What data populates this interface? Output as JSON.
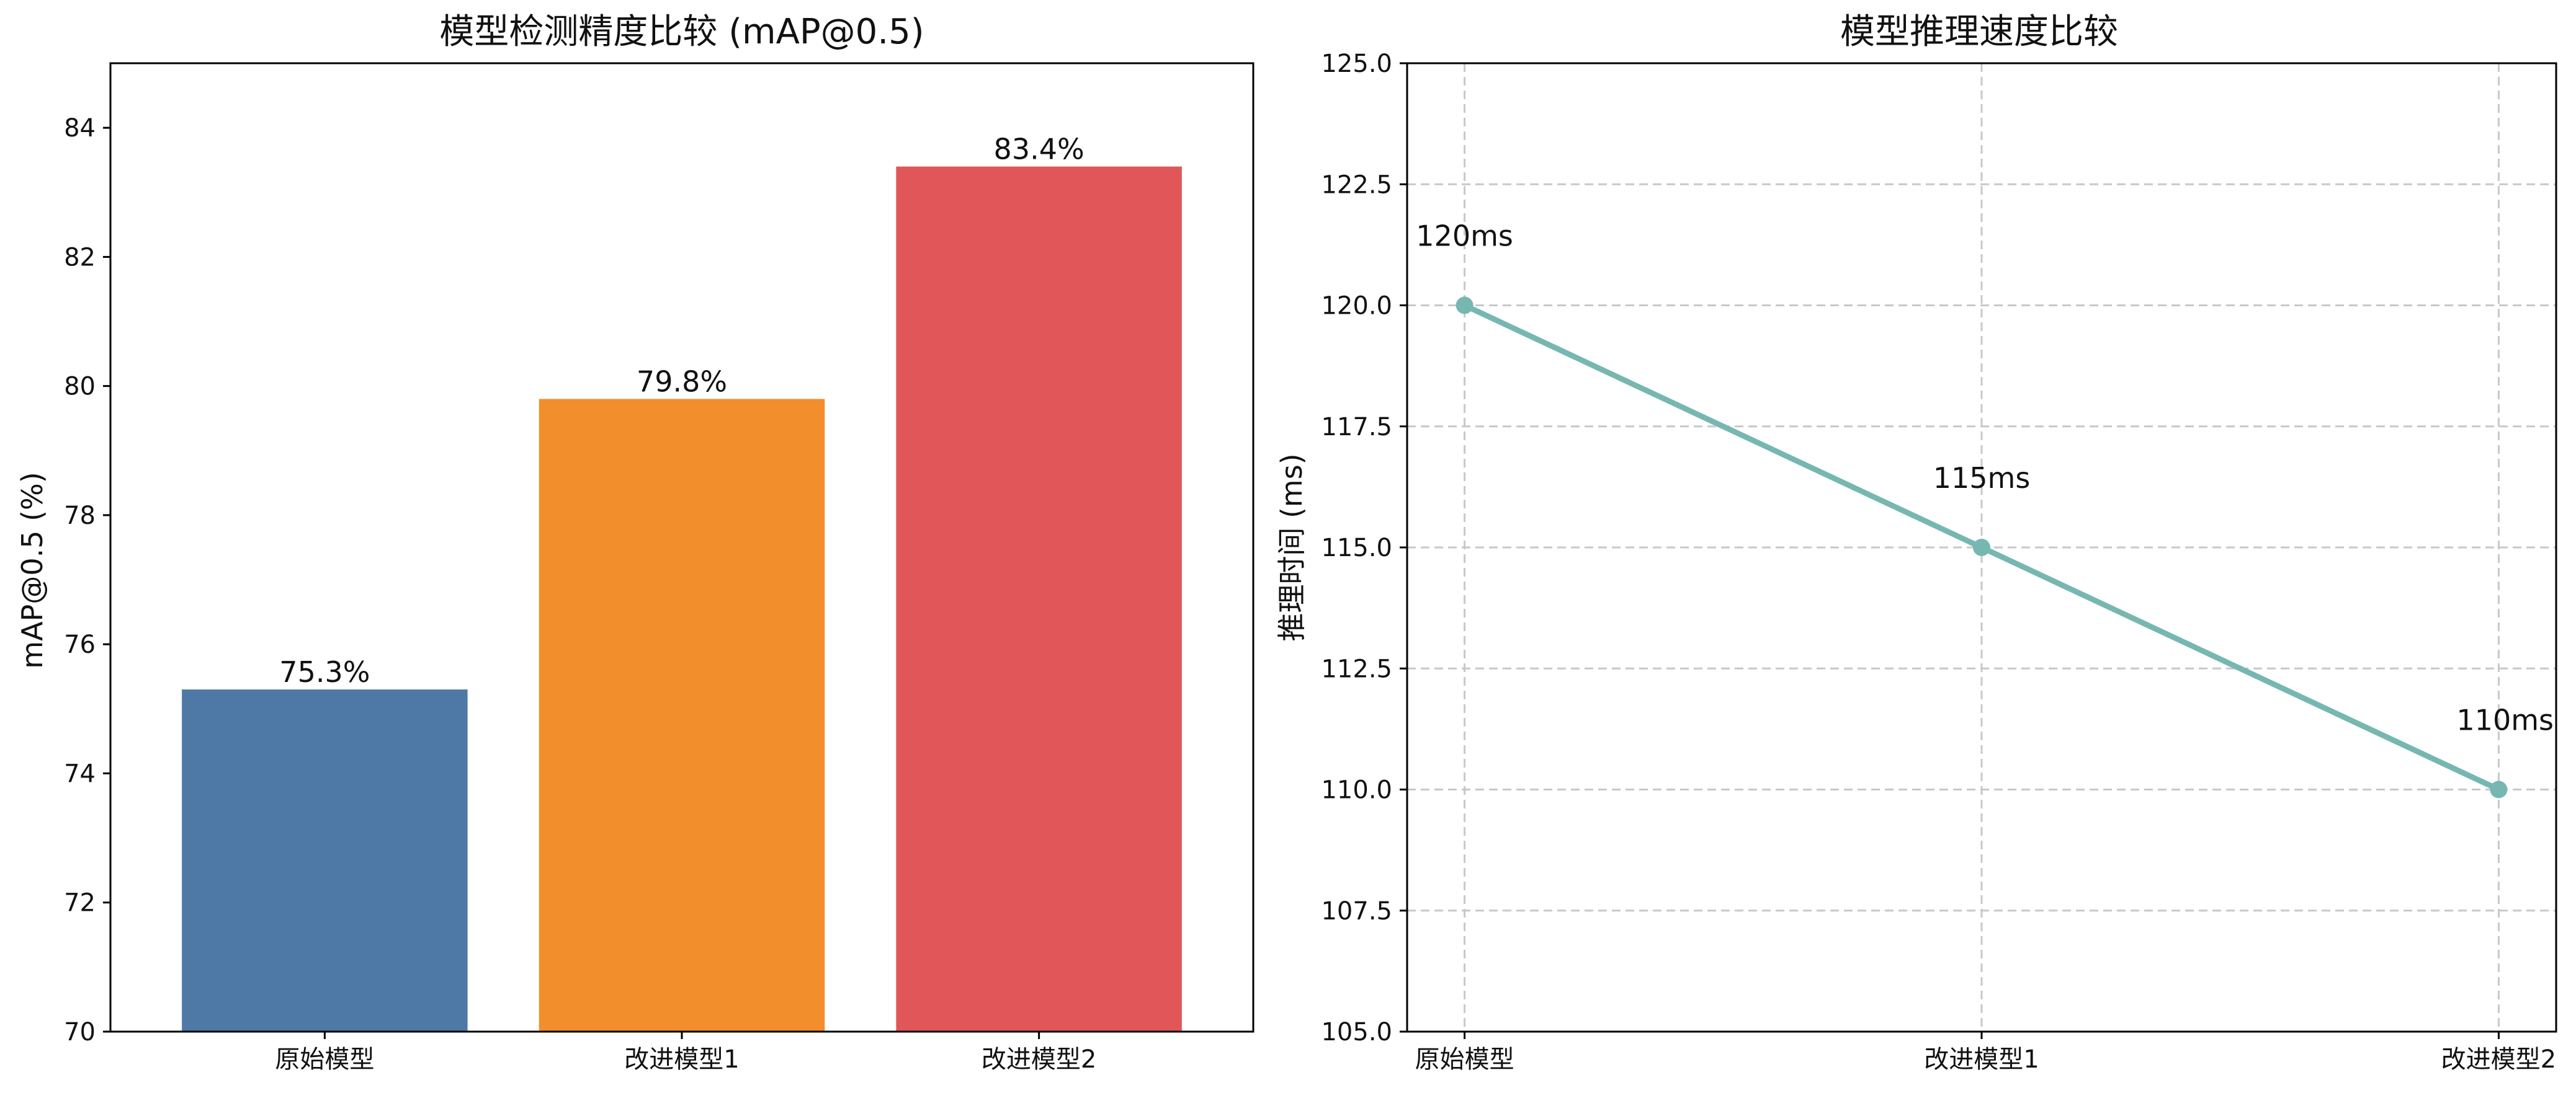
{
  "chart_data": [
    {
      "type": "bar",
      "title": "模型检测精度比较 (mAP@0.5)",
      "xlabel": "",
      "ylabel": "mAP@0.5 (%)",
      "categories": [
        "原始模型",
        "改进模型1",
        "改进模型2"
      ],
      "values": [
        75.3,
        79.8,
        83.4
      ],
      "data_labels": [
        "75.3%",
        "79.8%",
        "83.4%"
      ],
      "colors": [
        "#4e79a7",
        "#f28e2b",
        "#e15759"
      ],
      "ylim": [
        70,
        85
      ],
      "yticks": [
        70,
        72,
        74,
        76,
        78,
        80,
        82,
        84
      ],
      "grid": false
    },
    {
      "type": "line",
      "title": "模型推理速度比较",
      "xlabel": "",
      "ylabel": "推理时间 (ms)",
      "categories": [
        "原始模型",
        "改进模型1",
        "改进模型2"
      ],
      "values": [
        120,
        115,
        110
      ],
      "data_labels": [
        "120ms",
        "115ms",
        "110ms"
      ],
      "color": "#76b7b2",
      "ylim": [
        105,
        125
      ],
      "yticks": [
        "105.0",
        "107.5",
        "110.0",
        "112.5",
        "115.0",
        "117.5",
        "120.0",
        "122.5",
        "125.0"
      ],
      "grid": true
    }
  ]
}
